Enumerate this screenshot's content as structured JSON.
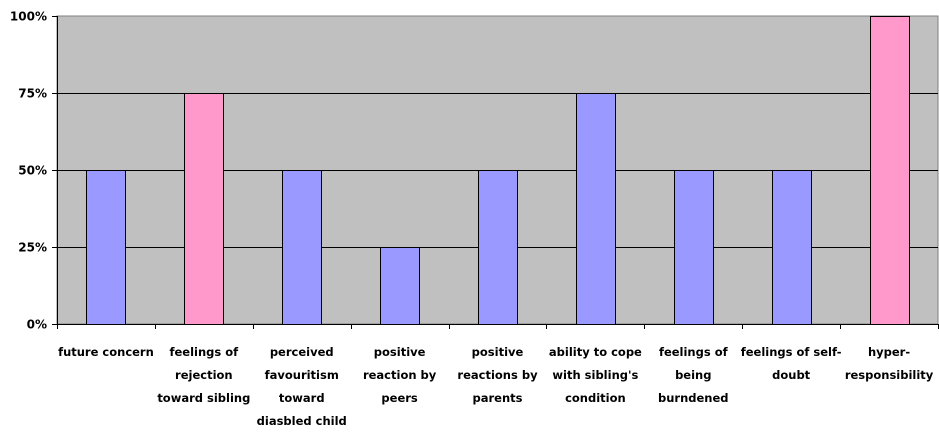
{
  "chart_data": {
    "type": "bar",
    "categories": [
      [
        "future concern"
      ],
      [
        "feelings of",
        "rejection",
        "toward sibling"
      ],
      [
        "perceived",
        "favouritism",
        "toward",
        "diasbled child"
      ],
      [
        "positive",
        "reaction by",
        "peers"
      ],
      [
        "positive",
        "reactions by",
        "parents"
      ],
      [
        "ability to cope",
        "with sibling's",
        "condition"
      ],
      [
        "feelings of",
        "being",
        "burndened"
      ],
      [
        "feelings of self-",
        "doubt"
      ],
      [
        "hyper-",
        "responsibility"
      ]
    ],
    "values": [
      50,
      75,
      50,
      25,
      50,
      75,
      50,
      50,
      100
    ],
    "bar_colors": [
      "#9999ff",
      "#ff99cc",
      "#9999ff",
      "#9999ff",
      "#9999ff",
      "#9999ff",
      "#9999ff",
      "#9999ff",
      "#ff99cc"
    ],
    "y_ticks": [
      "0%",
      "25%",
      "50%",
      "75%",
      "100%"
    ],
    "ylim": [
      0,
      100
    ],
    "plot_background": "#c0c0c0",
    "grid": true,
    "legend": "none"
  }
}
